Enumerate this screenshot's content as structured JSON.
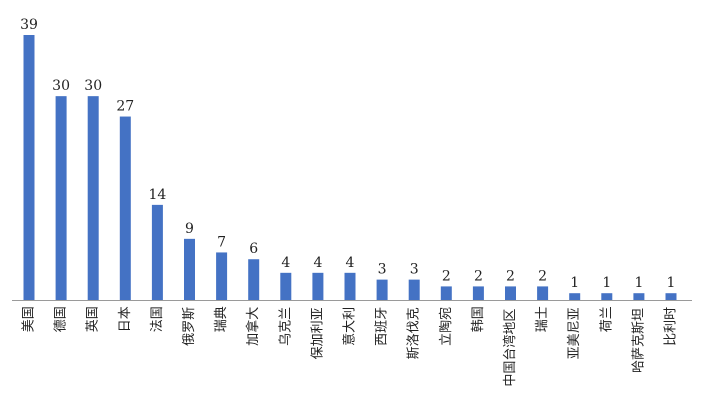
{
  "chart_data": {
    "type": "bar",
    "title": "",
    "xlabel": "",
    "ylabel": "",
    "ylim": [
      0,
      39
    ],
    "grid": false,
    "legend": "none",
    "bar_color": "#4472c4",
    "categories": [
      "美国",
      "德国",
      "英国",
      "日本",
      "法国",
      "俄罗斯",
      "瑞典",
      "加拿大",
      "乌克兰",
      "保加利亚",
      "意大利",
      "西班牙",
      "斯洛伐克",
      "立陶宛",
      "韩国",
      "中国台湾地区",
      "瑞士",
      "亚美尼亚",
      "荷兰",
      "哈萨克斯坦",
      "比利时"
    ],
    "values": [
      39,
      30,
      30,
      27,
      14,
      9,
      7,
      6,
      4,
      4,
      4,
      3,
      3,
      2,
      2,
      2,
      2,
      1,
      1,
      1,
      1
    ],
    "value_labels": [
      "39",
      "30",
      "30",
      "27",
      "14",
      "9",
      "7",
      "6",
      "4",
      "4",
      "4",
      "3",
      "3",
      "2",
      "2",
      "2",
      "2",
      "1",
      "1",
      "1",
      "1"
    ]
  }
}
